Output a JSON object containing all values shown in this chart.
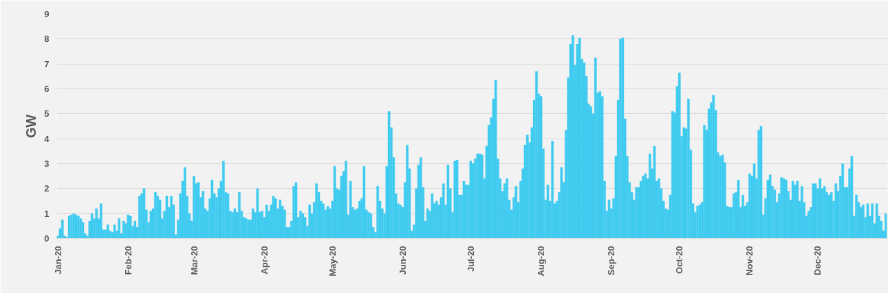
{
  "chart_data": {
    "type": "bar",
    "ylabel": "GW",
    "color": "#3fcbf0",
    "grid": "y",
    "ylim": [
      0,
      9
    ],
    "yticks": [
      0,
      1,
      2,
      3,
      4,
      5,
      6,
      7,
      8,
      9
    ],
    "categories": [
      "Jan-20",
      null,
      null,
      null,
      null,
      null,
      null,
      null,
      null,
      null,
      null,
      null,
      null,
      null,
      null,
      null,
      null,
      null,
      null,
      null,
      null,
      null,
      null,
      null,
      null,
      null,
      null,
      null,
      null,
      null,
      null,
      "Feb-20",
      null,
      null,
      null,
      null,
      null,
      null,
      null,
      null,
      null,
      null,
      null,
      null,
      null,
      null,
      null,
      null,
      null,
      null,
      null,
      null,
      null,
      null,
      null,
      null,
      null,
      null,
      null,
      null,
      "Mar-20",
      null,
      null,
      null,
      null,
      null,
      null,
      null,
      null,
      null,
      null,
      null,
      null,
      null,
      null,
      null,
      null,
      null,
      null,
      null,
      null,
      null,
      null,
      null,
      null,
      null,
      null,
      null,
      null,
      null,
      null,
      "Apr-20",
      null,
      null,
      null,
      null,
      null,
      null,
      null,
      null,
      null,
      null,
      null,
      null,
      null,
      null,
      null,
      null,
      null,
      null,
      null,
      null,
      null,
      null,
      null,
      null,
      null,
      null,
      null,
      null,
      null,
      "May-20",
      null,
      null,
      null,
      null,
      null,
      null,
      null,
      null,
      null,
      null,
      null,
      null,
      null,
      null,
      null,
      null,
      null,
      null,
      null,
      null,
      null,
      null,
      null,
      null,
      null,
      null,
      null,
      null,
      null,
      null,
      "Jun-20",
      null,
      null,
      null,
      null,
      null,
      null,
      null,
      null,
      null,
      null,
      null,
      null,
      null,
      null,
      null,
      null,
      null,
      null,
      null,
      null,
      null,
      null,
      null,
      null,
      null,
      null,
      null,
      null,
      null,
      "Jul-20",
      null,
      null,
      null,
      null,
      null,
      null,
      null,
      null,
      null,
      null,
      null,
      null,
      null,
      null,
      null,
      null,
      null,
      null,
      null,
      null,
      null,
      null,
      null,
      null,
      null,
      null,
      null,
      null,
      null,
      null,
      "Aug-20",
      null,
      null,
      null,
      null,
      null,
      null,
      null,
      null,
      null,
      null,
      null,
      null,
      null,
      null,
      null,
      null,
      null,
      null,
      null,
      null,
      null,
      null,
      null,
      null,
      null,
      null,
      null,
      null,
      null,
      null,
      "Sep-20",
      null,
      null,
      null,
      null,
      null,
      null,
      null,
      null,
      null,
      null,
      null,
      null,
      null,
      null,
      null,
      null,
      null,
      null,
      null,
      null,
      null,
      null,
      null,
      null,
      null,
      null,
      null,
      null,
      null,
      "Oct-20",
      null,
      null,
      null,
      null,
      null,
      null,
      null,
      null,
      null,
      null,
      null,
      null,
      null,
      null,
      null,
      null,
      null,
      null,
      null,
      null,
      null,
      null,
      null,
      null,
      null,
      null,
      null,
      null,
      null,
      null,
      "Nov-20",
      null,
      null,
      null,
      null,
      null,
      null,
      null,
      null,
      null,
      null,
      null,
      null,
      null,
      null,
      null,
      null,
      null,
      null,
      null,
      null,
      null,
      null,
      null,
      null,
      null,
      null,
      null,
      null,
      null,
      "Dec-20",
      null,
      null,
      null,
      null,
      null,
      null,
      null,
      null,
      null,
      null,
      null,
      null,
      null,
      null,
      null,
      null,
      null,
      null,
      null,
      null,
      null,
      null,
      null,
      null,
      null,
      null,
      null,
      null,
      null,
      null
    ],
    "values": [
      0.1,
      0.4,
      0.75,
      0.1,
      0.05,
      0.9,
      0.95,
      1.0,
      0.95,
      0.9,
      0.8,
      0.65,
      0.2,
      0.1,
      0.7,
      1.0,
      0.8,
      1.2,
      0.8,
      1.4,
      0.35,
      0.35,
      0.55,
      0.3,
      0.25,
      0.55,
      0.3,
      0.8,
      0.2,
      0.7,
      0.6,
      0.95,
      0.9,
      0.5,
      0.7,
      0.45,
      1.7,
      1.8,
      2.0,
      1.15,
      0.65,
      1.1,
      1.2,
      1.85,
      1.7,
      1.55,
      0.8,
      1.1,
      1.7,
      1.25,
      1.7,
      1.35,
      0.15,
      0.75,
      1.8,
      2.3,
      2.85,
      1.7,
      1.0,
      0.7,
      2.5,
      2.2,
      2.25,
      1.65,
      1.9,
      1.2,
      1.1,
      1.6,
      2.35,
      1.8,
      1.65,
      2.0,
      2.3,
      3.1,
      1.85,
      1.8,
      1.1,
      1.05,
      1.2,
      1.05,
      1.85,
      1.1,
      0.85,
      0.8,
      0.75,
      0.75,
      1.2,
      1.05,
      2.0,
      1.05,
      1.1,
      0.85,
      1.35,
      1.1,
      1.35,
      1.7,
      1.6,
      1.2,
      1.55,
      1.3,
      1.15,
      0.45,
      0.45,
      0.7,
      2.1,
      2.25,
      0.85,
      1.1,
      1.0,
      0.85,
      0.5,
      1.35,
      1.0,
      1.45,
      2.2,
      1.85,
      1.5,
      1.4,
      1.15,
      1.3,
      1.2,
      1.5,
      2.9,
      2.0,
      1.95,
      2.5,
      2.7,
      3.1,
      0.95,
      2.3,
      1.25,
      1.15,
      1.2,
      1.5,
      1.6,
      2.9,
      1.15,
      1.05,
      1.0,
      0.45,
      0.25,
      2.1,
      1.5,
      1.2,
      1.0,
      2.9,
      5.1,
      4.45,
      3.25,
      1.8,
      1.4,
      1.35,
      1.25,
      2.25,
      3.75,
      2.8,
      0.3,
      0.55,
      2.0,
      2.95,
      3.25,
      2.05,
      0.7,
      1.2,
      1.1,
      1.8,
      1.4,
      1.5,
      1.35,
      1.65,
      2.2,
      1.35,
      2.95,
      2.0,
      1.05,
      3.1,
      3.15,
      1.75,
      1.75,
      2.3,
      2.15,
      2.15,
      3.1,
      3.0,
      3.2,
      3.4,
      3.4,
      3.35,
      2.4,
      3.7,
      4.55,
      4.85,
      5.6,
      6.35,
      3.2,
      2.4,
      1.9,
      2.2,
      2.4,
      1.55,
      1.15,
      1.65,
      2.1,
      1.45,
      2.3,
      2.8,
      3.75,
      4.15,
      3.85,
      4.45,
      5.55,
      6.7,
      5.8,
      5.7,
      3.6,
      1.55,
      2.15,
      1.5,
      3.9,
      1.4,
      1.5,
      1.85,
      2.85,
      2.25,
      4.35,
      6.45,
      7.8,
      8.15,
      6.95,
      7.8,
      8.05,
      7.2,
      7.05,
      6.5,
      5.4,
      5.3,
      5.0,
      7.25,
      5.85,
      5.9,
      5.7,
      2.3,
      1.1,
      1.55,
      1.2,
      1.6,
      3.3,
      5.55,
      8.0,
      8.05,
      4.8,
      3.3,
      2.25,
      1.85,
      1.55,
      2.05,
      2.05,
      2.3,
      2.5,
      2.6,
      2.4,
      3.4,
      2.8,
      3.7,
      2.3,
      2.4,
      2.0,
      1.5,
      1.2,
      1.15,
      1.75,
      5.1,
      5.05,
      6.1,
      6.65,
      4.1,
      4.45,
      4.4,
      5.6,
      3.55,
      1.4,
      1.05,
      1.3,
      1.35,
      1.45,
      4.55,
      4.35,
      5.2,
      5.45,
      5.75,
      5.15,
      3.45,
      3.3,
      3.35,
      3.05,
      1.3,
      1.25,
      1.25,
      1.8,
      1.85,
      2.35,
      1.25,
      1.75,
      1.3,
      1.45,
      2.6,
      2.5,
      3.0,
      2.4,
      4.35,
      4.5,
      0.95,
      1.6,
      2.35,
      2.55,
      2.1,
      1.95,
      1.45,
      1.8,
      2.45,
      2.4,
      2.35,
      1.9,
      1.55,
      2.3,
      2.15,
      2.3,
      1.5,
      2.1,
      1.45,
      0.9,
      1.1,
      1.25,
      2.2,
      2.2,
      2.0,
      2.4,
      2.0,
      2.1,
      1.85,
      1.75,
      1.85,
      1.5,
      2.2,
      1.9,
      2.5,
      3.0,
      2.05,
      2.05,
      2.8,
      3.3,
      0.9,
      1.75,
      1.45,
      1.25,
      1.35,
      0.85,
      1.4,
      0.9,
      1.4,
      0.6,
      1.4,
      0.9,
      0.7,
      0.3,
      1.0
    ]
  }
}
